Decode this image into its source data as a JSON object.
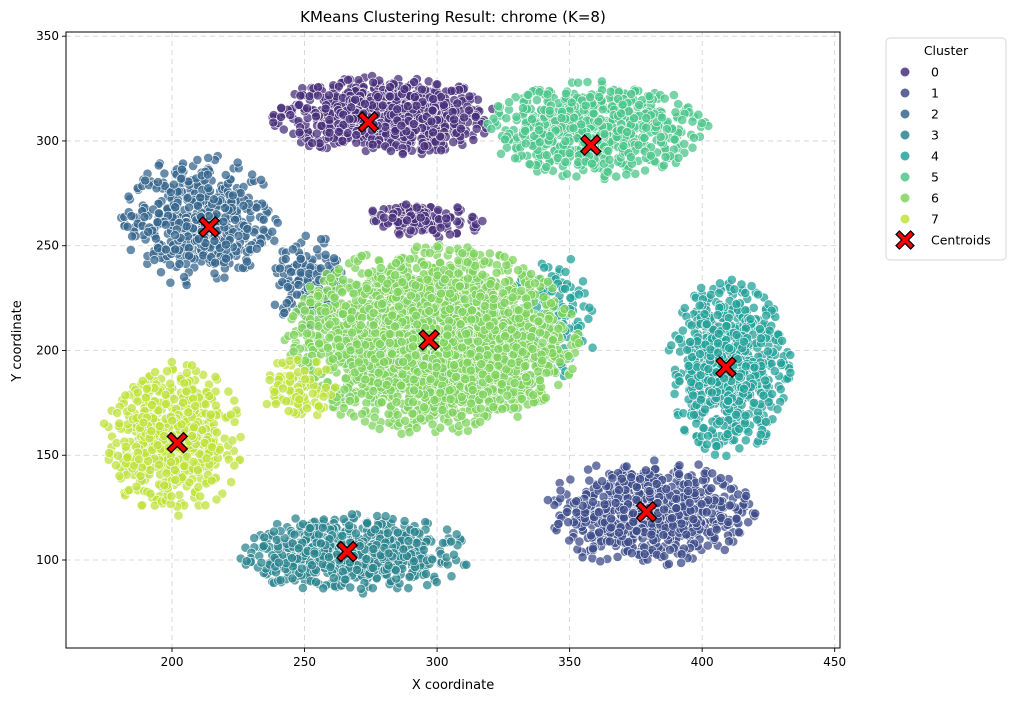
{
  "chart_data": {
    "type": "scatter",
    "title": "KMeans Clustering Result: chrome (K=8)",
    "xlabel": "X coordinate",
    "ylabel": "Y coordinate",
    "xlim": [
      160,
      452
    ],
    "ylim": [
      58,
      352
    ],
    "xticks": [
      200,
      250,
      300,
      350,
      400,
      450
    ],
    "yticks": [
      100,
      150,
      200,
      250,
      300,
      350
    ],
    "grid": true,
    "legend": {
      "title": "Cluster",
      "placement": "outside-upper-right",
      "entries": [
        "0",
        "1",
        "2",
        "3",
        "4",
        "5",
        "6",
        "7"
      ],
      "centroid_label": "Centroids"
    },
    "colors": {
      "0": "#46327e",
      "1": "#365c8d",
      "2": "#277f8e",
      "3": "#1fa187",
      "4": "#4ac16d",
      "5": "#a0da39",
      "6": "#fde725",
      "7": "#a8d42c",
      "display": [
        "#482f7b",
        "#3e4c8a",
        "#36668c",
        "#2b848d",
        "#24a19a",
        "#4bc68a",
        "#7ed35c",
        "#bfe13b"
      ],
      "centroid": "#ff0000"
    },
    "centroids": [
      {
        "cluster": "0",
        "x": 274,
        "y": 309
      },
      {
        "cluster": "1",
        "x": 379,
        "y": 123
      },
      {
        "cluster": "2",
        "x": 214,
        "y": 259
      },
      {
        "cluster": "3",
        "x": 266,
        "y": 104
      },
      {
        "cluster": "4",
        "x": 409,
        "y": 192
      },
      {
        "cluster": "5",
        "x": 358,
        "y": 298
      },
      {
        "cluster": "6",
        "x": 297,
        "y": 205
      },
      {
        "cluster": "7",
        "x": 202,
        "y": 156
      }
    ],
    "cluster_regions": [
      {
        "cluster": "0",
        "shape": "ellipse",
        "cx": 280,
        "cy": 312,
        "rx": 40,
        "ry": 18,
        "count": 900
      },
      {
        "cluster": "0",
        "shape": "ellipse",
        "cx": 295,
        "cy": 262,
        "rx": 22,
        "ry": 8,
        "count": 120
      },
      {
        "cluster": "1",
        "shape": "ellipse",
        "cx": 380,
        "cy": 122,
        "rx": 38,
        "ry": 25,
        "count": 750
      },
      {
        "cluster": "2",
        "shape": "ellipse",
        "cx": 210,
        "cy": 262,
        "rx": 28,
        "ry": 30,
        "count": 520
      },
      {
        "cluster": "2",
        "shape": "ellipse",
        "cx": 252,
        "cy": 232,
        "rx": 14,
        "ry": 22,
        "count": 160
      },
      {
        "cluster": "3",
        "shape": "ellipse",
        "cx": 268,
        "cy": 103,
        "rx": 42,
        "ry": 18,
        "count": 700
      },
      {
        "cluster": "4",
        "shape": "ellipse",
        "cx": 410,
        "cy": 192,
        "rx": 22,
        "ry": 40,
        "count": 700
      },
      {
        "cluster": "4",
        "shape": "ellipse",
        "cx": 345,
        "cy": 218,
        "rx": 16,
        "ry": 30,
        "count": 130
      },
      {
        "cluster": "5",
        "shape": "ellipse",
        "cx": 360,
        "cy": 305,
        "rx": 40,
        "ry": 22,
        "count": 700
      },
      {
        "cluster": "6",
        "shape": "ellipse",
        "cx": 298,
        "cy": 205,
        "rx": 52,
        "ry": 43,
        "count": 2600
      },
      {
        "cluster": "7",
        "shape": "ellipse",
        "cx": 200,
        "cy": 158,
        "rx": 25,
        "ry": 35,
        "count": 620
      },
      {
        "cluster": "7",
        "shape": "ellipse",
        "cx": 248,
        "cy": 182,
        "rx": 14,
        "ry": 14,
        "count": 90
      }
    ]
  }
}
